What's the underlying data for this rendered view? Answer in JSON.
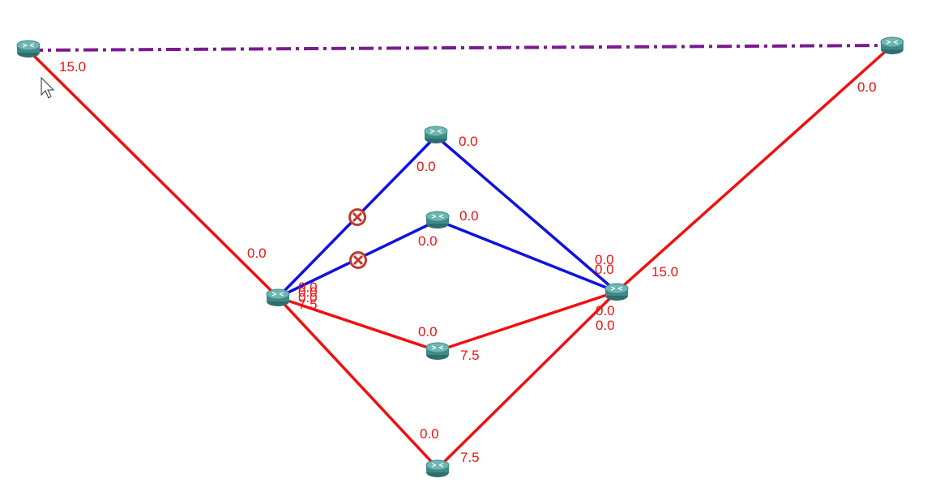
{
  "colors": {
    "link_red": "#ee1111",
    "link_blue": "#1010dd",
    "link_purple": "#7a1b8e",
    "label_red": "#ee1111",
    "router_body": "#3d8a88",
    "router_top": "#6fb6b2",
    "blocked_mark": "#c0392b"
  },
  "icons": {
    "router": "router-icon",
    "blocked": "blocked-port-icon",
    "cursor": "mouse-pointer-icon"
  },
  "labels": {
    "r1_top_left": "15.0",
    "r2_top_right": "0.0",
    "r3_top_mid": "0.0",
    "r3_in": "0.0",
    "r4_mid": "0.0",
    "r4_in": "0.0",
    "r5_left_top": "0.0",
    "r5_stack": [
      "0.0",
      "0.0",
      "0.0",
      "7.5"
    ],
    "r6_right_a": "0.0",
    "r6_right_b": "0.0",
    "r6_right_c": "0.0",
    "r6_right_d": "0.0",
    "r6_uplink": "15.0",
    "r7_in": "0.0",
    "r7_out": "7.5",
    "r8_in": "0.0",
    "r8_out": "7.5"
  }
}
